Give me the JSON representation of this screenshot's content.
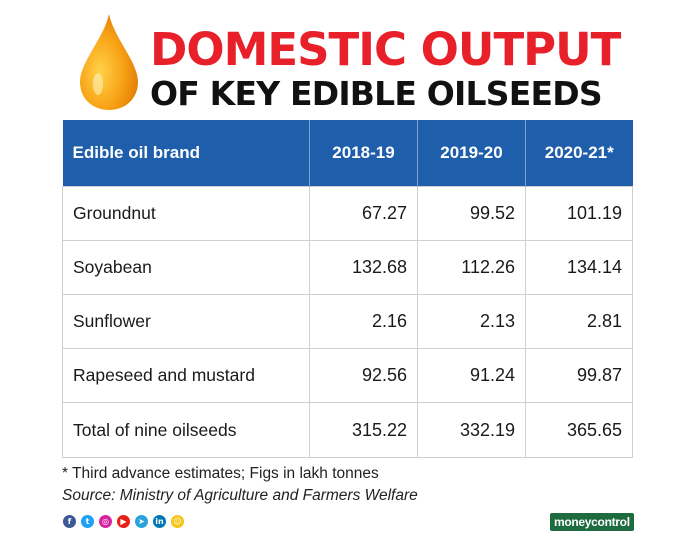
{
  "header": {
    "title_line1": "DOMESTIC OUTPUT",
    "title_line2": "OF KEY EDIBLE OILSEEDS"
  },
  "chart_data": {
    "type": "table",
    "title": "DOMESTIC OUTPUT OF KEY EDIBLE OILSEEDS",
    "columns": [
      "Edible oil brand",
      "2018-19",
      "2019-20",
      "2020-21*"
    ],
    "rows": [
      [
        "Groundnut",
        "67.27",
        "99.52",
        "101.19"
      ],
      [
        "Soyabean",
        "132.68",
        "112.26",
        "134.14"
      ],
      [
        "Sunflower",
        "2.16",
        "2.13",
        "2.81"
      ],
      [
        "Rapeseed and mustard",
        "92.56",
        "91.24",
        "99.87"
      ],
      [
        "Total of nine oilseeds",
        "315.22",
        "332.19",
        "365.65"
      ]
    ]
  },
  "footer": {
    "note": "* Third advance estimates; Figs in lakh tonnes",
    "source": "Source: Ministry of Agriculture and Farmers Welfare",
    "brand": "moneycontrol"
  },
  "social": [
    {
      "icon": "facebook-icon",
      "glyph": "f",
      "color": "#3b5998"
    },
    {
      "icon": "twitter-icon",
      "glyph": "t",
      "color": "#1da1f2"
    },
    {
      "icon": "instagram-icon",
      "glyph": "◎",
      "color": "#d6249f"
    },
    {
      "icon": "youtube-icon",
      "glyph": "▶",
      "color": "#e62117"
    },
    {
      "icon": "telegram-icon",
      "glyph": "➤",
      "color": "#2aa3dc"
    },
    {
      "icon": "linkedin-icon",
      "glyph": "in",
      "color": "#0077b5"
    },
    {
      "icon": "snapchat-icon",
      "glyph": "☺",
      "color": "#f5c518"
    }
  ],
  "colors": {
    "title_red": "#e8202a",
    "header_blue": "#1f5eab",
    "drop_orange": "#f59a12"
  }
}
